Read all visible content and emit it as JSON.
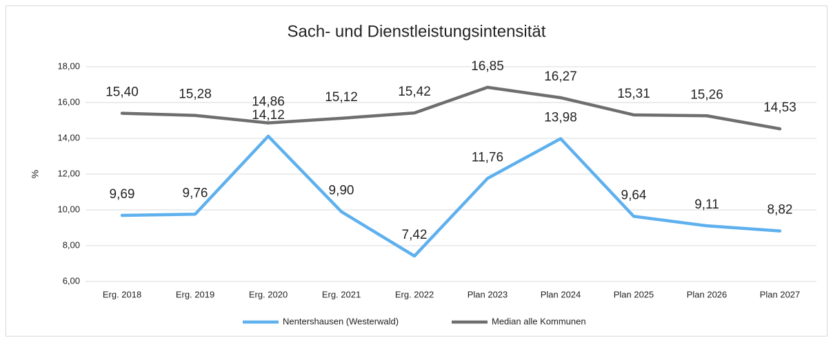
{
  "chart_data": {
    "type": "line",
    "title": "Sach- und Dienstleistungsintensität",
    "y_label": "%",
    "categories": [
      "Erg. 2018",
      "Erg. 2019",
      "Erg. 2020",
      "Erg. 2021",
      "Erg. 2022",
      "Plan 2023",
      "Plan 2024",
      "Plan 2025",
      "Plan 2026",
      "Plan 2027"
    ],
    "series": [
      {
        "name": "Nentershausen (Westerwald)",
        "color": "#5eb0ee",
        "values": [
          9.69,
          9.76,
          14.12,
          9.9,
          7.42,
          11.76,
          13.98,
          9.64,
          9.11,
          8.82
        ],
        "value_labels": [
          "9,69",
          "9,76",
          "14,12",
          "9,90",
          "7,42",
          "11,76",
          "13,98",
          "9,64",
          "9,11",
          "8,82"
        ]
      },
      {
        "name": "Median alle Kommunen",
        "color": "#6e6e6e",
        "values": [
          15.4,
          15.28,
          14.86,
          15.12,
          15.42,
          16.85,
          16.27,
          15.31,
          15.26,
          14.53
        ],
        "value_labels": [
          "15,40",
          "15,28",
          "14,86",
          "15,12",
          "15,42",
          "16,85",
          "16,27",
          "15,31",
          "15,26",
          "14,53"
        ]
      }
    ],
    "ylim": [
      6,
      18
    ],
    "yticks": [
      {
        "value": 6,
        "label": "6,00"
      },
      {
        "value": 8,
        "label": "8,00"
      },
      {
        "value": 10,
        "label": "10,00"
      },
      {
        "value": 12,
        "label": "12,00"
      },
      {
        "value": 14,
        "label": "14,00"
      },
      {
        "value": 16,
        "label": "16,00"
      },
      {
        "value": 18,
        "label": "18,00"
      }
    ],
    "grid": true,
    "legend": "bottom"
  }
}
